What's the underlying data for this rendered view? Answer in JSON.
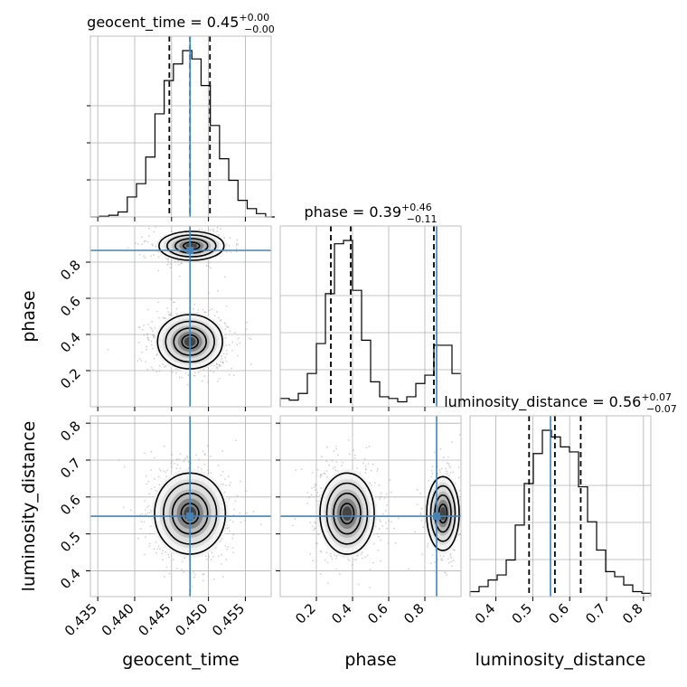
{
  "chart_data": {
    "type": "corner",
    "parameters": [
      "geocent_time",
      "phase",
      "luminosity_distance"
    ],
    "truths": {
      "geocent_time": 0.4475,
      "phase": 0.865,
      "luminosity_distance": 0.548
    },
    "truth_color": "#4682b4",
    "grid": true,
    "titles": [
      {
        "param": "geocent_time",
        "name": "geocent_time",
        "value": "0.45",
        "upper": "+0.00",
        "lower": "−0.00"
      },
      {
        "param": "phase",
        "name": "phase",
        "value": "0.39",
        "upper": "+0.46",
        "lower": "−0.11"
      },
      {
        "param": "luminosity_distance",
        "name": "luminosity_distance",
        "value": "0.56",
        "upper": "+0.07",
        "lower": "−0.07"
      }
    ],
    "axis_labels": {
      "x": [
        "geocent_time",
        "phase",
        "luminosity_distance"
      ],
      "y": [
        "phase",
        "luminosity_distance"
      ]
    },
    "ticks": {
      "geocent_time": {
        "range": [
          0.434,
          0.4585
        ],
        "values": [
          0.435,
          0.44,
          0.445,
          0.45,
          0.455
        ],
        "labels": [
          "0.435",
          "0.440",
          "0.445",
          "0.450",
          "0.455"
        ]
      },
      "phase": {
        "range": [
          0.0,
          1.0
        ],
        "values": [
          0.2,
          0.4,
          0.6,
          0.8
        ],
        "labels": [
          "0.2",
          "0.4",
          "0.6",
          "0.8"
        ]
      },
      "luminosity_distance": {
        "range": [
          0.33,
          0.82
        ],
        "values": [
          0.4,
          0.5,
          0.6,
          0.7,
          0.8
        ],
        "labels": [
          "0.4",
          "0.5",
          "0.6",
          "0.7",
          "0.8"
        ]
      }
    },
    "histograms": [
      {
        "param": "geocent_time",
        "bin_edges": [
          0.434,
          0.43525,
          0.4365,
          0.43775,
          0.439,
          0.44025,
          0.4415,
          0.44275,
          0.444,
          0.44525,
          0.4465,
          0.44775,
          0.449,
          0.45025,
          0.4515,
          0.45275,
          0.454,
          0.45525,
          0.4565,
          0.45775,
          0.459
        ],
        "counts": [
          0.0,
          0.004,
          0.01,
          0.03,
          0.12,
          0.2,
          0.36,
          0.62,
          0.82,
          0.92,
          1.0,
          0.95,
          0.79,
          0.55,
          0.35,
          0.22,
          0.1,
          0.05,
          0.02,
          0.0
        ],
        "quantiles": [
          0.4447,
          0.4475,
          0.4502
        ]
      },
      {
        "param": "phase",
        "bin_edges": [
          0.0,
          0.05,
          0.1,
          0.15,
          0.2,
          0.25,
          0.3,
          0.35,
          0.4,
          0.45,
          0.5,
          0.55,
          0.6,
          0.65,
          0.7,
          0.75,
          0.8,
          0.85,
          0.9,
          0.95,
          1.0
        ],
        "counts": [
          0.05,
          0.04,
          0.08,
          0.2,
          0.38,
          0.68,
          0.98,
          1.0,
          0.7,
          0.4,
          0.15,
          0.06,
          0.05,
          0.03,
          0.06,
          0.14,
          0.19,
          0.37,
          0.37,
          0.2
        ],
        "quantiles": [
          0.28,
          0.39,
          0.85
        ]
      },
      {
        "param": "luminosity_distance",
        "bin_edges": [
          0.33,
          0.3545,
          0.379,
          0.4035,
          0.428,
          0.4525,
          0.477,
          0.5015,
          0.526,
          0.5505,
          0.575,
          0.5995,
          0.624,
          0.6485,
          0.673,
          0.6975,
          0.722,
          0.7465,
          0.771,
          0.7955,
          0.82
        ],
        "counts": [
          0.03,
          0.06,
          0.1,
          0.13,
          0.22,
          0.43,
          0.68,
          0.86,
          1.0,
          0.96,
          0.9,
          0.87,
          0.66,
          0.45,
          0.28,
          0.15,
          0.12,
          0.07,
          0.03,
          0.02
        ],
        "quantiles": [
          0.49,
          0.56,
          0.63
        ]
      }
    ],
    "pairs": [
      {
        "x": "geocent_time",
        "y": "phase",
        "blobs": [
          {
            "cx": 0.4475,
            "cy": 0.36,
            "sx": 0.0022,
            "sy": 0.075
          },
          {
            "cx": 0.4477,
            "cy": 0.89,
            "sx": 0.0022,
            "sy": 0.04
          }
        ]
      },
      {
        "x": "geocent_time",
        "y": "luminosity_distance",
        "blobs": [
          {
            "cx": 0.4475,
            "cy": 0.555,
            "sx": 0.0024,
            "sy": 0.055
          }
        ]
      },
      {
        "x": "phase",
        "y": "luminosity_distance",
        "blobs": [
          {
            "cx": 0.37,
            "cy": 0.555,
            "sx": 0.075,
            "sy": 0.055
          },
          {
            "cx": 0.9,
            "cy": 0.555,
            "sx": 0.045,
            "sy": 0.05
          }
        ]
      }
    ]
  }
}
